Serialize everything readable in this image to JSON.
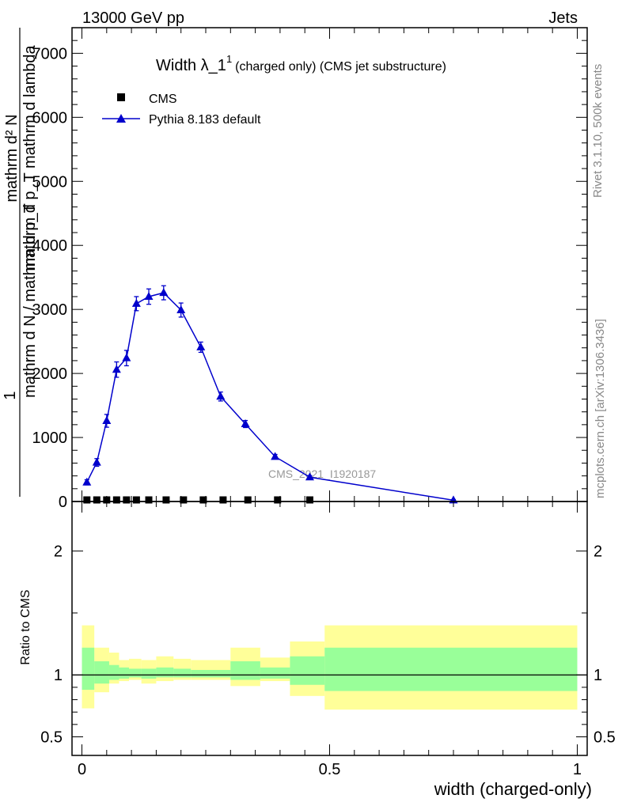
{
  "header": {
    "energy_label": "13000 GeV pp",
    "category_label": "Jets"
  },
  "side_labels": {
    "rivet": "Rivet 3.1.10,  500k events",
    "mcplots": "mcplots.cern.ch [arXiv:1306.3436]"
  },
  "chart_data": [
    {
      "type": "scatter",
      "panel": "main",
      "title_main": "Width λ_1",
      "title_sup": "1",
      "title_sub": "(charged only) (CMS jet substructure)",
      "ylabel_numerator": "1",
      "ylabel_denominator": "mathrm d N / mathrm d p_T",
      "ylabel_right": "mathrm d² N",
      "ylabel_right_den": "mathrm d p_T mathrm d lambda",
      "ylim": [
        0,
        7400
      ],
      "yticks": [
        {
          "value": 0,
          "label": "0"
        },
        {
          "value": 1000,
          "label": "1000"
        },
        {
          "value": 2000,
          "label": "2000"
        },
        {
          "value": 3000,
          "label": "3000"
        },
        {
          "value": 4000,
          "label": "4000"
        },
        {
          "value": 5000,
          "label": "5000"
        },
        {
          "value": 6000,
          "label": "6000"
        },
        {
          "value": 7000,
          "label": "7000"
        }
      ],
      "xlim": [
        -0.02,
        1.02
      ],
      "watermark": "CMS_2021_I1920187",
      "legend": [
        {
          "name": "CMS",
          "marker": "square",
          "color": "#000000"
        },
        {
          "name": "Pythia 8.183 default",
          "marker": "triangle",
          "color": "#0000cc"
        }
      ],
      "series": [
        {
          "name": "CMS",
          "x": [
            0.01,
            0.03,
            0.05,
            0.07,
            0.09,
            0.11,
            0.135,
            0.17,
            0.205,
            0.245,
            0.285,
            0.335,
            0.395,
            0.46
          ],
          "y": [
            0,
            0,
            0,
            0,
            0,
            0,
            0,
            0,
            0,
            0,
            0,
            0,
            0,
            0
          ]
        },
        {
          "name": "Pythia 8.183 default",
          "color": "#0000cc",
          "x": [
            0.01,
            0.03,
            0.05,
            0.07,
            0.09,
            0.11,
            0.135,
            0.165,
            0.2,
            0.24,
            0.28,
            0.33,
            0.39,
            0.46,
            0.75
          ],
          "y": [
            300,
            610,
            1260,
            2060,
            2240,
            3090,
            3200,
            3260,
            2990,
            2410,
            1640,
            1210,
            700,
            380,
            20
          ],
          "err": [
            40,
            60,
            100,
            120,
            120,
            110,
            120,
            110,
            110,
            80,
            70,
            55,
            35,
            25,
            10
          ]
        }
      ]
    },
    {
      "type": "area",
      "panel": "ratio",
      "ylabel": "Ratio to CMS",
      "ylim": [
        0.35,
        2.4
      ],
      "yticks": [
        {
          "value": 0.5,
          "label": "0.5"
        },
        {
          "value": 1,
          "label": "1"
        },
        {
          "value": 2,
          "label": "2"
        }
      ],
      "xticks": [
        {
          "value": 0,
          "label": "0"
        },
        {
          "value": 0.5,
          "label": "0.5"
        },
        {
          "value": 1,
          "label": "1"
        }
      ],
      "xlabel": "width (charged-only)",
      "band_colors": {
        "outer": "#ffff99",
        "inner": "#99ff99",
        "line": "#000000"
      },
      "bins": [
        {
          "x0": 0.0,
          "x1": 0.025,
          "outer": [
            0.73,
            1.4
          ],
          "inner": [
            0.88,
            1.22
          ]
        },
        {
          "x0": 0.025,
          "x1": 0.055,
          "outer": [
            0.86,
            1.22
          ],
          "inner": [
            0.93,
            1.11
          ]
        },
        {
          "x0": 0.055,
          "x1": 0.075,
          "outer": [
            0.93,
            1.18
          ],
          "inner": [
            0.96,
            1.08
          ]
        },
        {
          "x0": 0.075,
          "x1": 0.095,
          "outer": [
            0.95,
            1.12
          ],
          "inner": [
            0.97,
            1.06
          ]
        },
        {
          "x0": 0.095,
          "x1": 0.12,
          "outer": [
            0.96,
            1.13
          ],
          "inner": [
            0.98,
            1.05
          ]
        },
        {
          "x0": 0.12,
          "x1": 0.15,
          "outer": [
            0.93,
            1.12
          ],
          "inner": [
            0.97,
            1.05
          ]
        },
        {
          "x0": 0.15,
          "x1": 0.185,
          "outer": [
            0.95,
            1.15
          ],
          "inner": [
            0.98,
            1.06
          ]
        },
        {
          "x0": 0.185,
          "x1": 0.22,
          "outer": [
            0.96,
            1.13
          ],
          "inner": [
            0.98,
            1.05
          ]
        },
        {
          "x0": 0.22,
          "x1": 0.3,
          "outer": [
            0.96,
            1.12
          ],
          "inner": [
            0.98,
            1.04
          ]
        },
        {
          "x0": 0.3,
          "x1": 0.36,
          "outer": [
            0.91,
            1.22
          ],
          "inner": [
            0.96,
            1.11
          ]
        },
        {
          "x0": 0.36,
          "x1": 0.42,
          "outer": [
            0.95,
            1.14
          ],
          "inner": [
            0.97,
            1.06
          ]
        },
        {
          "x0": 0.42,
          "x1": 0.49,
          "outer": [
            0.83,
            1.27
          ],
          "inner": [
            0.92,
            1.15
          ]
        },
        {
          "x0": 0.49,
          "x1": 1.0,
          "outer": [
            0.72,
            1.4
          ],
          "inner": [
            0.87,
            1.22
          ]
        }
      ]
    }
  ]
}
